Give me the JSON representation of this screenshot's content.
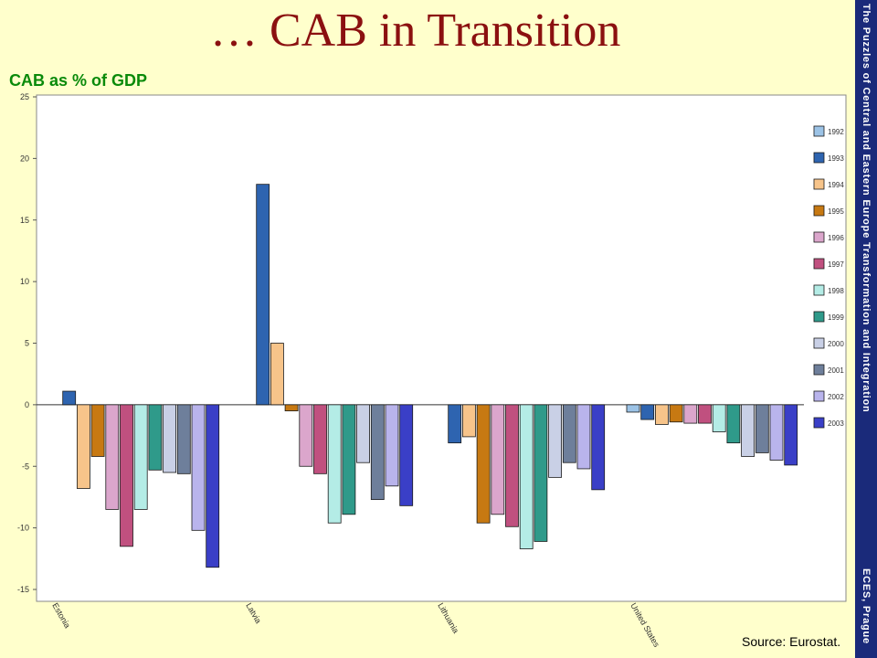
{
  "slide": {
    "title": "… CAB in Transition",
    "subtitle": "CAB as % of GDP",
    "source": "Source: Eurostat.",
    "side_band_top": "The Puzzles of Central and Eastern Europe Transformation and Integration",
    "side_band_bottom": "ECES, Prague"
  },
  "colors": {
    "background": "#ffffcc",
    "title": "#8b1010",
    "subtitle": "#0a8a0a",
    "side_band": "#1a2a7a"
  },
  "chart_data": {
    "type": "bar",
    "title": "",
    "xlabel": "",
    "ylabel": "",
    "ylim": [
      -15,
      25
    ],
    "yticks": [
      25,
      20,
      15,
      10,
      5,
      0,
      -5,
      -10,
      -15
    ],
    "categories": [
      "Estonia",
      "Latvia",
      "Lithuania",
      "United States"
    ],
    "legend_position": "right",
    "series": [
      {
        "name": "1992",
        "color": "#9cc3e6",
        "values": [
          null,
          null,
          null,
          -0.6
        ]
      },
      {
        "name": "1993",
        "color": "#2e64b0",
        "values": [
          1.1,
          17.9,
          -3.1,
          -1.2
        ]
      },
      {
        "name": "1994",
        "color": "#f7c48a",
        "values": [
          -6.8,
          5.0,
          -2.6,
          -1.6
        ]
      },
      {
        "name": "1995",
        "color": "#c77912",
        "values": [
          -4.2,
          -0.5,
          -9.6,
          -1.4
        ]
      },
      {
        "name": "1996",
        "color": "#dba6cc",
        "values": [
          -8.5,
          -5.0,
          -8.9,
          -1.5
        ]
      },
      {
        "name": "1997",
        "color": "#c0507f",
        "values": [
          -11.5,
          -5.6,
          -9.9,
          -1.5
        ]
      },
      {
        "name": "1998",
        "color": "#b4ece6",
        "values": [
          -8.5,
          -9.6,
          -11.7,
          -2.2
        ]
      },
      {
        "name": "1999",
        "color": "#2f9a8a",
        "values": [
          -5.3,
          -8.9,
          -11.1,
          -3.1
        ]
      },
      {
        "name": "2000",
        "color": "#c9d0e6",
        "values": [
          -5.5,
          -4.7,
          -5.9,
          -4.2
        ]
      },
      {
        "name": "2001",
        "color": "#6e7f9b",
        "values": [
          -5.6,
          -7.7,
          -4.7,
          -3.9
        ]
      },
      {
        "name": "2002",
        "color": "#b9b4ec",
        "values": [
          -10.2,
          -6.6,
          -5.2,
          -4.5
        ]
      },
      {
        "name": "2003",
        "color": "#3a3fc7",
        "values": [
          -13.2,
          -8.2,
          -6.9,
          -4.9
        ]
      }
    ]
  }
}
